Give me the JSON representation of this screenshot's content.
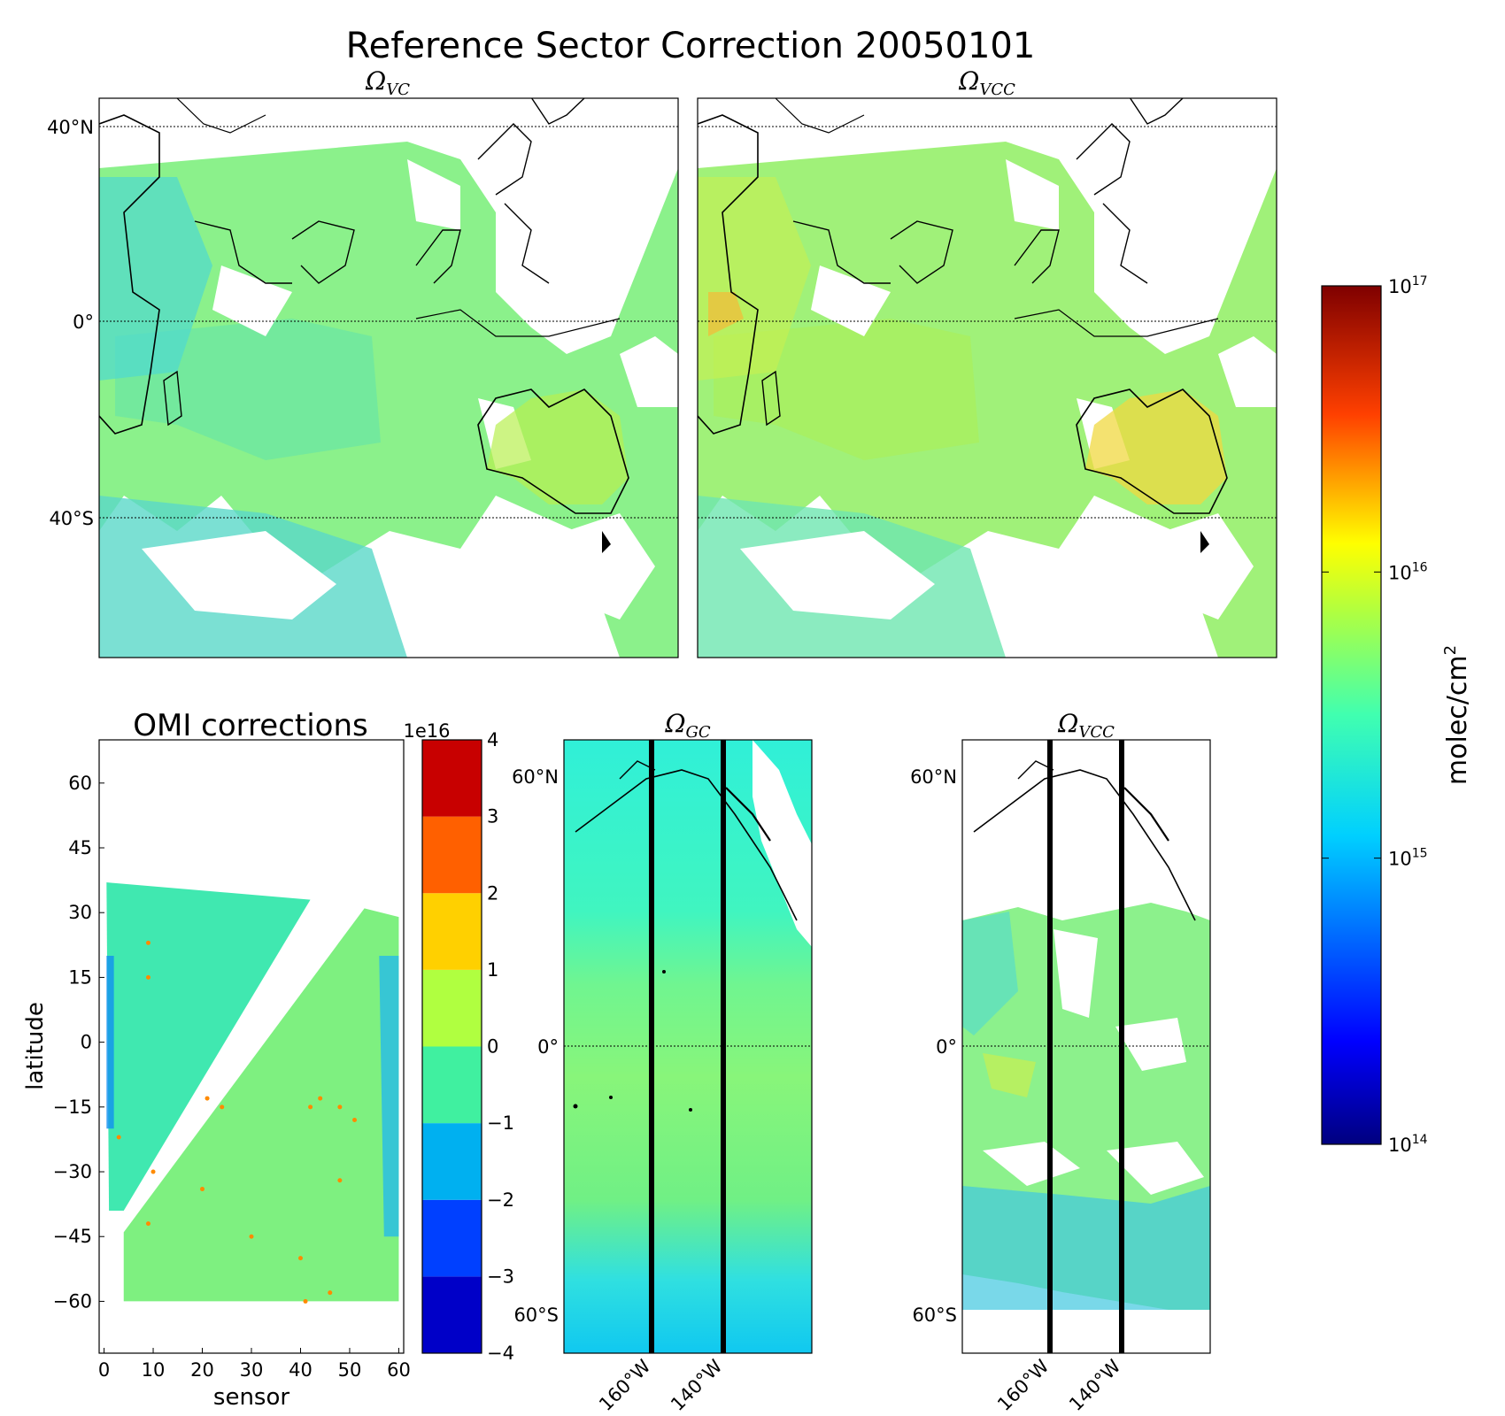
{
  "figure": {
    "title": "Reference Sector Correction 20050101"
  },
  "panels": {
    "vc": {
      "title_main": "Ω",
      "title_sub": "VC"
    },
    "vcc_top": {
      "title_main": "Ω",
      "title_sub": "VCC"
    },
    "gc": {
      "title_main": "Ω",
      "title_sub": "GC"
    },
    "vcc_bottom": {
      "title_main": "Ω",
      "title_sub": "VCC"
    }
  },
  "map_lat_labels_top": [
    "40°N",
    "0°",
    "40°S"
  ],
  "map_lat_labels_bottom": [
    "60°N",
    "0°",
    "60°S"
  ],
  "map_lon_labels_bottom": [
    "160°W",
    "140°W"
  ],
  "colorbar_main": {
    "label_main": "molec/cm",
    "label_exp": "2",
    "ticks": [
      {
        "base": "10",
        "exp": "17",
        "value": 1e+17
      },
      {
        "base": "10",
        "exp": "16",
        "value": 1e+16
      },
      {
        "base": "10",
        "exp": "15",
        "value": 1000000000000000.0
      },
      {
        "base": "10",
        "exp": "14",
        "value": 100000000000000.0
      }
    ],
    "colors": [
      "#00007f",
      "#0000ff",
      "#007fff",
      "#00ffff",
      "#7fff7f",
      "#ffff00",
      "#ff7f00",
      "#ff0000",
      "#7f0000"
    ]
  },
  "chart_data": [
    {
      "type": "heatmap",
      "title": "OMI corrections",
      "xlabel": "sensor",
      "ylabel": "latitude",
      "xlim": [
        -1,
        61
      ],
      "ylim": [
        -72,
        70
      ],
      "xticks": [
        0,
        10,
        20,
        30,
        40,
        50,
        60
      ],
      "yticks": [
        60,
        45,
        30,
        15,
        0,
        -15,
        -30,
        -45,
        -60
      ],
      "colorbar": {
        "multiplier": "1e16",
        "ticks": [
          4,
          3,
          2,
          1,
          0,
          -1,
          -2,
          -3,
          -4
        ],
        "bins": [
          {
            "from": -4,
            "to": -3,
            "color": "#0000c8"
          },
          {
            "from": -3,
            "to": -2,
            "color": "#0040ff"
          },
          {
            "from": -2,
            "to": -1,
            "color": "#00b0f0"
          },
          {
            "from": -1,
            "to": 0,
            "color": "#40f0a0"
          },
          {
            "from": 0,
            "to": 1,
            "color": "#b0ff40"
          },
          {
            "from": 1,
            "to": 2,
            "color": "#ffd000"
          },
          {
            "from": 2,
            "to": 3,
            "color": "#ff6000"
          },
          {
            "from": 3,
            "to": 4,
            "color": "#c80000"
          }
        ]
      }
    }
  ]
}
